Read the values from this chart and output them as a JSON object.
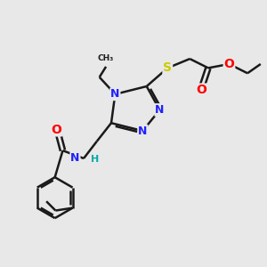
{
  "bg_color": "#e8e8e8",
  "bond_color": "#1a1a1a",
  "atom_colors": {
    "N": "#2020ff",
    "O": "#ff0000",
    "S": "#cccc00",
    "C": "#1a1a1a",
    "H": "#00aaaa"
  },
  "figsize": [
    3.0,
    3.0
  ],
  "dpi": 100,
  "lw": 1.8
}
